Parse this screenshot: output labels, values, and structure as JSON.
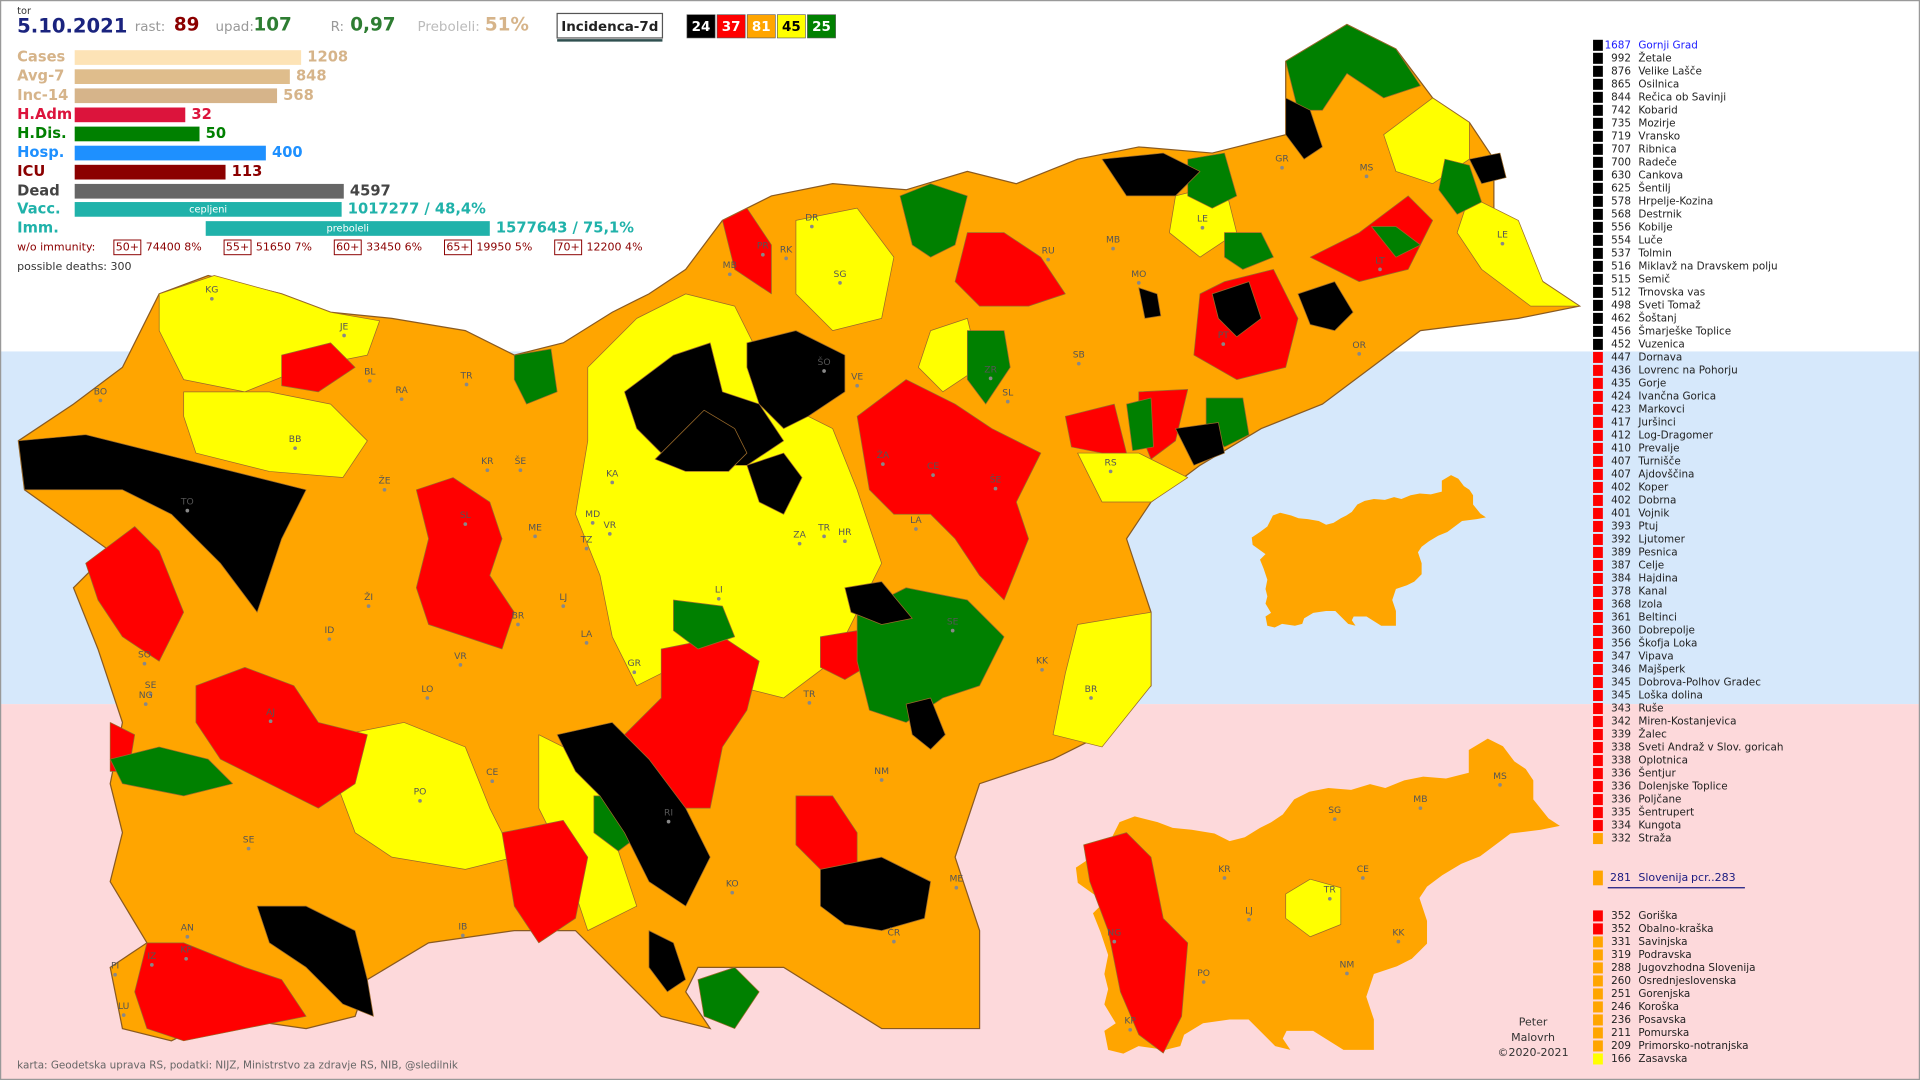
{
  "header": {
    "day": "tor",
    "date": "5.10.2021",
    "growth_label": "rast:",
    "growth": 89,
    "decline_label": "upad:",
    "decline": 107,
    "r_label": "R:",
    "r": "0,97",
    "recovered_label": "Preboleli:",
    "recovered": "51%",
    "metric": "Incidenca-7d",
    "class_counts": [
      {
        "value": 24,
        "color": "#000000"
      },
      {
        "value": 37,
        "color": "#ff0000"
      },
      {
        "value": 81,
        "color": "#ffa500"
      },
      {
        "value": 45,
        "color": "#ffff00"
      },
      {
        "value": 25,
        "color": "#008000"
      }
    ]
  },
  "stats": [
    {
      "label": "Cases",
      "value": 1208,
      "color": "#fde3b6",
      "text_color": "#d6b48a"
    },
    {
      "label": "Avg-7",
      "value": 848,
      "color": "#dfbd8c",
      "text_color": "#d6b48a"
    },
    {
      "label": "Inc-14",
      "value": 568,
      "color": "#d6b48a",
      "text_color": "#d6b48a"
    },
    {
      "label": "H.Adm",
      "value": 32,
      "color": "#dc143c",
      "text_color": "#dc143c"
    },
    {
      "label": "H.Dis.",
      "value": 50,
      "color": "#008000",
      "text_color": "#008000"
    },
    {
      "label": "Hosp.",
      "value": 400,
      "color": "#1e90ff",
      "text_color": "#1e90ff"
    },
    {
      "label": "ICU",
      "value": 113,
      "color": "#8b0000",
      "text_color": "#8b0000"
    },
    {
      "label": "Dead",
      "value": 4597,
      "color": "#666666",
      "text_color": "#444444"
    }
  ],
  "vaccination": [
    {
      "label": "Vacc.",
      "inner": "cepljeni",
      "text": "1017277 / 48,4%"
    },
    {
      "label": "Imm.",
      "inner": "preboleli",
      "text": "1577643 / 75,1%"
    }
  ],
  "without_immunity": {
    "label": "w/o immunity:",
    "groups": [
      {
        "age": "50+",
        "text": "74400 8%"
      },
      {
        "age": "55+",
        "text": "51650 7%"
      },
      {
        "age": "60+",
        "text": "33450 6%"
      },
      {
        "age": "65+",
        "text": "19950 5%"
      },
      {
        "age": "70+",
        "text": "12200 4%"
      }
    ]
  },
  "possible_deaths": "possible deaths: 300",
  "municipalities": [
    {
      "value": 1687,
      "name": "Gornji Grad",
      "color": "#000000",
      "text_color": "#1a1aff"
    },
    {
      "value": 992,
      "name": "Žetale",
      "color": "#000000"
    },
    {
      "value": 876,
      "name": "Velike Lašče",
      "color": "#000000"
    },
    {
      "value": 865,
      "name": "Osilnica",
      "color": "#000000"
    },
    {
      "value": 844,
      "name": "Rečica ob Savinji",
      "color": "#000000"
    },
    {
      "value": 742,
      "name": "Kobarid",
      "color": "#000000"
    },
    {
      "value": 735,
      "name": "Mozirje",
      "color": "#000000"
    },
    {
      "value": 719,
      "name": "Vransko",
      "color": "#000000"
    },
    {
      "value": 707,
      "name": "Ribnica",
      "color": "#000000"
    },
    {
      "value": 700,
      "name": "Radeče",
      "color": "#000000"
    },
    {
      "value": 630,
      "name": "Cankova",
      "color": "#000000"
    },
    {
      "value": 625,
      "name": "Šentilj",
      "color": "#000000"
    },
    {
      "value": 578,
      "name": "Hrpelje-Kozina",
      "color": "#000000"
    },
    {
      "value": 568,
      "name": "Destrnik",
      "color": "#000000"
    },
    {
      "value": 556,
      "name": "Kobilje",
      "color": "#000000"
    },
    {
      "value": 554,
      "name": "Luče",
      "color": "#000000"
    },
    {
      "value": 537,
      "name": "Tolmin",
      "color": "#000000"
    },
    {
      "value": 516,
      "name": "Miklavž na Dravskem polju",
      "color": "#000000"
    },
    {
      "value": 515,
      "name": "Semič",
      "color": "#000000"
    },
    {
      "value": 512,
      "name": "Trnovska vas",
      "color": "#000000"
    },
    {
      "value": 498,
      "name": "Sveti Tomaž",
      "color": "#000000"
    },
    {
      "value": 462,
      "name": "Šoštanj",
      "color": "#000000"
    },
    {
      "value": 456,
      "name": "Šmarješke Toplice",
      "color": "#000000"
    },
    {
      "value": 452,
      "name": "Vuzenica",
      "color": "#000000"
    },
    {
      "value": 447,
      "name": "Dornava",
      "color": "#ff0000"
    },
    {
      "value": 436,
      "name": "Lovrenc na Pohorju",
      "color": "#ff0000"
    },
    {
      "value": 435,
      "name": "Gorje",
      "color": "#ff0000"
    },
    {
      "value": 424,
      "name": "Ivančna Gorica",
      "color": "#ff0000"
    },
    {
      "value": 423,
      "name": "Markovci",
      "color": "#ff0000"
    },
    {
      "value": 417,
      "name": "Juršinci",
      "color": "#ff0000"
    },
    {
      "value": 412,
      "name": "Log-Dragomer",
      "color": "#ff0000"
    },
    {
      "value": 410,
      "name": "Prevalje",
      "color": "#ff0000"
    },
    {
      "value": 407,
      "name": "Turnišče",
      "color": "#ff0000"
    },
    {
      "value": 407,
      "name": "Ajdovščina",
      "color": "#ff0000"
    },
    {
      "value": 402,
      "name": "Koper",
      "color": "#ff0000"
    },
    {
      "value": 402,
      "name": "Dobrna",
      "color": "#ff0000"
    },
    {
      "value": 401,
      "name": "Vojnik",
      "color": "#ff0000"
    },
    {
      "value": 393,
      "name": "Ptuj",
      "color": "#ff0000"
    },
    {
      "value": 392,
      "name": "Ljutomer",
      "color": "#ff0000"
    },
    {
      "value": 389,
      "name": "Pesnica",
      "color": "#ff0000"
    },
    {
      "value": 387,
      "name": "Celje",
      "color": "#ff0000"
    },
    {
      "value": 384,
      "name": "Hajdina",
      "color": "#ff0000"
    },
    {
      "value": 378,
      "name": "Kanal",
      "color": "#ff0000"
    },
    {
      "value": 368,
      "name": "Izola",
      "color": "#ff0000"
    },
    {
      "value": 361,
      "name": "Beltinci",
      "color": "#ff0000"
    },
    {
      "value": 360,
      "name": "Dobrepolje",
      "color": "#ff0000"
    },
    {
      "value": 356,
      "name": "Škofja Loka",
      "color": "#ff0000"
    },
    {
      "value": 347,
      "name": "Vipava",
      "color": "#ff0000"
    },
    {
      "value": 346,
      "name": "Majšperk",
      "color": "#ff0000"
    },
    {
      "value": 345,
      "name": "Dobrova-Polhov Gradec",
      "color": "#ff0000"
    },
    {
      "value": 345,
      "name": "Loška dolina",
      "color": "#ff0000"
    },
    {
      "value": 343,
      "name": "Ruše",
      "color": "#ff0000"
    },
    {
      "value": 342,
      "name": "Miren-Kostanjevica",
      "color": "#ff0000"
    },
    {
      "value": 339,
      "name": "Žalec",
      "color": "#ff0000"
    },
    {
      "value": 338,
      "name": "Sveti Andraž v Slov. goricah",
      "color": "#ff0000"
    },
    {
      "value": 338,
      "name": "Oplotnica",
      "color": "#ff0000"
    },
    {
      "value": 336,
      "name": "Šentjur",
      "color": "#ff0000"
    },
    {
      "value": 336,
      "name": "Dolenjske Toplice",
      "color": "#ff0000"
    },
    {
      "value": 336,
      "name": "Poljčane",
      "color": "#ff0000"
    },
    {
      "value": 335,
      "name": "Šentrupert",
      "color": "#ff0000"
    },
    {
      "value": 334,
      "name": "Kungota",
      "color": "#ff0000"
    },
    {
      "value": 332,
      "name": "Straža",
      "color": "#ffa500"
    }
  ],
  "national": {
    "value": 281,
    "name": "Slovenija",
    "extra": "pcr..283",
    "color": "#ffa500"
  },
  "regions": [
    {
      "value": 352,
      "name": "Goriška",
      "color": "#ff0000"
    },
    {
      "value": 352,
      "name": "Obalno-kraška",
      "color": "#ff0000"
    },
    {
      "value": 331,
      "name": "Savinjska",
      "color": "#ffa500"
    },
    {
      "value": 319,
      "name": "Podravska",
      "color": "#ffa500"
    },
    {
      "value": 288,
      "name": "Jugovzhodna Slovenija",
      "color": "#ffa500"
    },
    {
      "value": 260,
      "name": "Osrednjeslovenska",
      "color": "#ffa500"
    },
    {
      "value": 251,
      "name": "Gorenjska",
      "color": "#ffa500"
    },
    {
      "value": 246,
      "name": "Koroška",
      "color": "#ffa500"
    },
    {
      "value": 236,
      "name": "Posavska",
      "color": "#ffa500"
    },
    {
      "value": 211,
      "name": "Pomurska",
      "color": "#ffa500"
    },
    {
      "value": 209,
      "name": "Primorsko-notranjska",
      "color": "#ffa500"
    },
    {
      "value": 166,
      "name": "Zasavska",
      "color": "#ffff00"
    }
  ],
  "map_labels": [
    "KG",
    "JE",
    "BL",
    "RA",
    "TR",
    "BO",
    "BB",
    "KR",
    "ŠE",
    "TO",
    "ŽE",
    "SL",
    "ME",
    "MD",
    "VR",
    "TZ",
    "KA",
    "LJ",
    "ZA",
    "TR",
    "HR",
    "LI",
    "LA",
    "ID",
    "ŽI",
    "BR",
    "LA",
    "GR",
    "VR",
    "LO",
    "SE",
    "KK",
    "BR",
    "TR",
    "AJ",
    "SE",
    "NG",
    "SO",
    "PO",
    "CE",
    "NM",
    "RI",
    "SE",
    "KO",
    "ME",
    "ČR",
    "IB",
    "AN",
    "KP",
    "IZ",
    "PI",
    "LU",
    "ŽA",
    "CE",
    "ŠE",
    "RS",
    "ŠO",
    "VE",
    "ZR",
    "SB",
    "SL",
    "DR",
    "RK",
    "PR",
    "MB",
    "SG",
    "RU",
    "MB",
    "MO",
    "LE",
    "GR",
    "MS",
    "PT",
    "OR",
    "LT",
    "LE"
  ],
  "region_map_labels": [
    "SG",
    "MB",
    "MS",
    "KR",
    "CE",
    "TR",
    "LJ",
    "KK",
    "NG",
    "PO",
    "NM",
    "KP"
  ],
  "footer": "karta: Geodetska uprava RS,  podatki: NIJZ, Ministrstvo za zdravje RS, NIB, @sledilnik",
  "author": [
    "Peter",
    "Malovrh",
    "©2020-2021"
  ]
}
